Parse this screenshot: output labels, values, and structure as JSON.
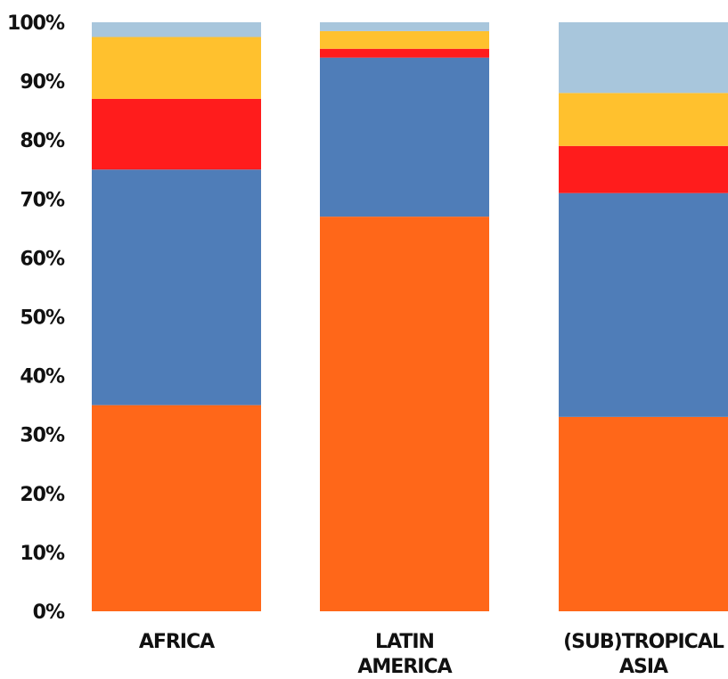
{
  "chart_data": {
    "type": "bar",
    "stacked": true,
    "percent_stacked": true,
    "title": "",
    "xlabel": "",
    "ylabel": "",
    "ylim": [
      0,
      100
    ],
    "y_ticks": [
      "0%",
      "10%",
      "20%",
      "30%",
      "40%",
      "50%",
      "60%",
      "70%",
      "80%",
      "90%",
      "100%"
    ],
    "grid": false,
    "legend": "none",
    "categories": [
      [
        "AFRICA"
      ],
      [
        "LATIN",
        "AMERICA"
      ],
      [
        "(SUB)TROPICAL",
        "ASIA"
      ]
    ],
    "series": [
      {
        "color": "#FF6719",
        "values": [
          35,
          67,
          33
        ]
      },
      {
        "color": "#4F7DB8",
        "values": [
          40,
          27,
          38
        ]
      },
      {
        "color": "#FF1C1C",
        "values": [
          12,
          1.5,
          8
        ]
      },
      {
        "color": "#FFC12E",
        "values": [
          10.5,
          3,
          9
        ]
      },
      {
        "color": "#A8C6DC",
        "values": [
          2.5,
          1.5,
          12
        ]
      }
    ]
  }
}
